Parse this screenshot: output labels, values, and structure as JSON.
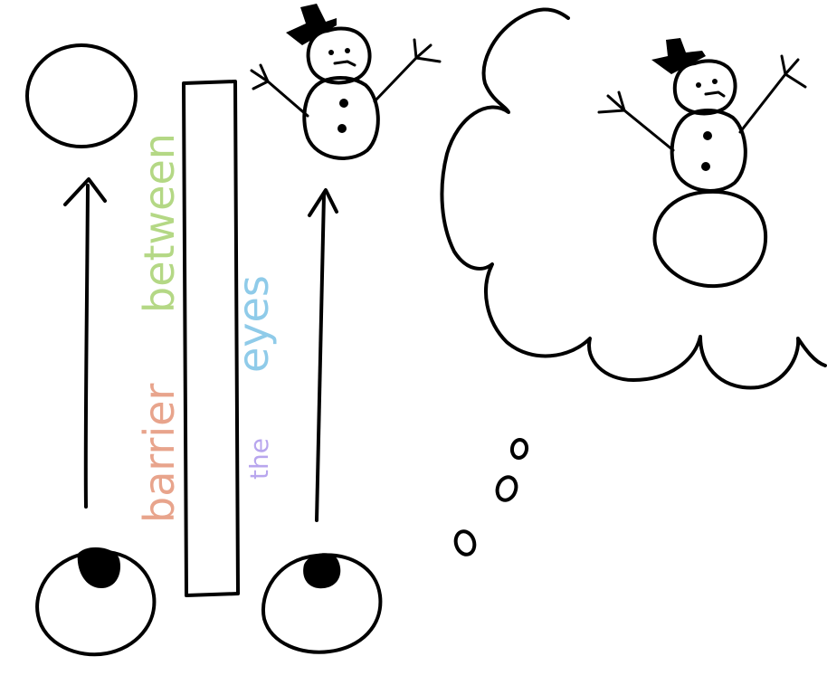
{
  "labels": {
    "word_barrier": "barrier",
    "word_between": "between",
    "word_the": "the",
    "word_eyes": "eyes"
  },
  "colors": {
    "ink": "#000000",
    "barrier_b": "#e8958c",
    "barrier_a": "#f0a16f",
    "barrier_r1": "#f4a9a0",
    "barrier_r2": "#f0b482",
    "barrier_i": "#e9a0c2",
    "barrier_e": "#c6a0e3",
    "barrier_r3": "#a9b6ee",
    "between_b": "#8ed58e",
    "between_e": "#b7e37e",
    "between_t": "#d6d36f",
    "between_w": "#e9c36c",
    "between_e2": "#eab26c",
    "between_e3": "#ec9f84",
    "between_n": "#e99aa0",
    "the_t": "#9fb9f0",
    "the_h": "#b79df0",
    "the_e": "#d29ad8",
    "eyes_e": "#7fd9e8",
    "eyes_y": "#8fc3f2",
    "eyes_e2": "#a9a8f1",
    "eyes_s": "#c49bef"
  },
  "icons": [
    "eyeball-left",
    "eyeball-right",
    "target-circle",
    "snowman",
    "thought-cloud",
    "snowman-imagined",
    "arrow-up"
  ]
}
